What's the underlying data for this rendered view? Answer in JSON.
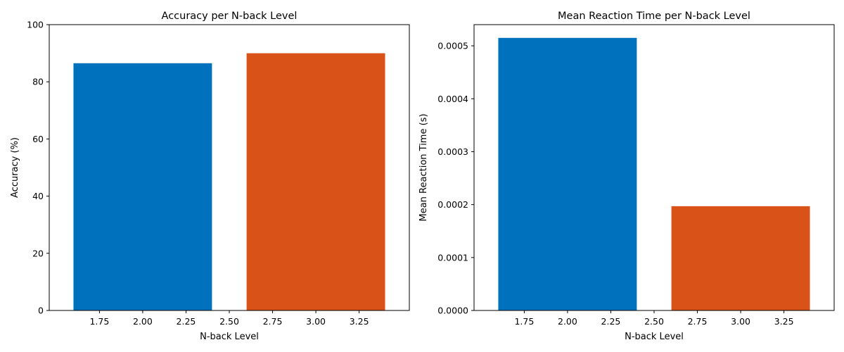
{
  "chart_data": [
    {
      "type": "bar",
      "title": "Accuracy per N-back Level",
      "xlabel": "N-back Level",
      "ylabel": "Accuracy (%)",
      "x": [
        2,
        3
      ],
      "values": [
        86.5,
        90.0
      ],
      "bar_width": 0.8,
      "bar_colors": [
        "#0072BD",
        "#D95319"
      ],
      "xlim": [
        1.46,
        3.54
      ],
      "ylim": [
        0,
        100
      ],
      "xticks": [
        "1.75",
        "2.00",
        "2.25",
        "2.50",
        "2.75",
        "3.00",
        "3.25"
      ],
      "xtick_values": [
        1.75,
        2.0,
        2.25,
        2.5,
        2.75,
        3.0,
        3.25
      ],
      "yticks": [
        "0",
        "20",
        "40",
        "60",
        "80",
        "100"
      ],
      "ytick_values": [
        0,
        20,
        40,
        60,
        80,
        100
      ],
      "grid": false
    },
    {
      "type": "bar",
      "title": "Mean Reaction Time per N-back Level",
      "xlabel": "N-back Level",
      "ylabel": "Mean Reaction Time (s)",
      "x": [
        2,
        3
      ],
      "values": [
        0.000515,
        0.000197
      ],
      "bar_width": 0.8,
      "bar_colors": [
        "#0072BD",
        "#D95319"
      ],
      "xlim": [
        1.46,
        3.54
      ],
      "ylim": [
        0,
        0.00054
      ],
      "xticks": [
        "1.75",
        "2.00",
        "2.25",
        "2.50",
        "2.75",
        "3.00",
        "3.25"
      ],
      "xtick_values": [
        1.75,
        2.0,
        2.25,
        2.5,
        2.75,
        3.0,
        3.25
      ],
      "yticks": [
        "0.0000",
        "0.0001",
        "0.0002",
        "0.0003",
        "0.0004",
        "0.0005"
      ],
      "ytick_values": [
        0,
        0.0001,
        0.0002,
        0.0003,
        0.0004,
        0.0005
      ],
      "grid": false
    }
  ]
}
